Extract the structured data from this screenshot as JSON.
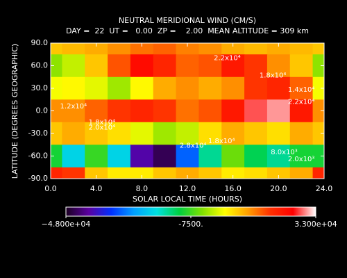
{
  "chart_data": {
    "type": "heatmap",
    "title": "NEUTRAL MERIDIONAL WIND (CM/S)",
    "subtitle": "DAY =  22  UT =   0.00  ZP =    2.00  MEAN ALTITUDE = 309 km",
    "x_label": "SOLAR LOCAL TIME (HOURS)",
    "y_label": "LATITUDE (DEGREES GEOGRAPHIC)",
    "x": [
      0,
      2,
      4,
      6,
      8,
      10,
      12,
      14,
      16,
      18,
      20,
      22,
      24
    ],
    "y": [
      90,
      60,
      30,
      0,
      -30,
      -60,
      -90
    ],
    "values": [
      [
        8000,
        9000,
        10000,
        12000,
        14000,
        15000,
        13000,
        12000,
        10000,
        9000,
        10000,
        9000,
        8000
      ],
      [
        -3000,
        0,
        8000,
        16000,
        24000,
        20000,
        15000,
        16000,
        22000,
        18000,
        12000,
        8000,
        -3000
      ],
      [
        3000,
        4000,
        2000,
        -2000,
        4000,
        10000,
        12000,
        10000,
        12000,
        18000,
        20000,
        15000,
        3000
      ],
      [
        12000,
        12000,
        15000,
        18000,
        20000,
        18000,
        14000,
        16000,
        22000,
        28000,
        30000,
        22000,
        12000
      ],
      [
        8000,
        10000,
        8000,
        6000,
        2000,
        -2000,
        0,
        6000,
        10000,
        8000,
        6000,
        10000,
        8000
      ],
      [
        -10000,
        -20000,
        -8000,
        -20000,
        -40000,
        -45000,
        -30000,
        -15000,
        -5000,
        -12000,
        -15000,
        -10000,
        -10000
      ],
      [
        20000,
        18000,
        8000,
        5000,
        5000,
        8000,
        10000,
        8000,
        5000,
        6000,
        8000,
        10000,
        20000
      ]
    ],
    "xlim": [
      0,
      24
    ],
    "ylim": [
      -90,
      90
    ],
    "xticks": [
      {
        "value": 0,
        "label": "0.0"
      },
      {
        "value": 4,
        "label": "4.0"
      },
      {
        "value": 8,
        "label": "8.0"
      },
      {
        "value": 12,
        "label": "12.0"
      },
      {
        "value": 16,
        "label": "16.0"
      },
      {
        "value": 20,
        "label": "20.0"
      },
      {
        "value": 24,
        "label": "24.0"
      }
    ],
    "yticks": [
      {
        "value": 90,
        "label": "90.0"
      },
      {
        "value": 60,
        "label": "60.0"
      },
      {
        "value": 30,
        "label": "30.0"
      },
      {
        "value": 0,
        "label": "0.0"
      },
      {
        "value": -30,
        "label": "-30.0"
      },
      {
        "value": -60,
        "label": "-60.0"
      },
      {
        "value": -90,
        "label": "-90.0"
      }
    ],
    "zlim": [
      -48000,
      33000
    ],
    "zticks": [
      {
        "value": -48000,
        "label": "−4.800e+04"
      },
      {
        "value": -7500,
        "label": "-7500."
      },
      {
        "value": 33000,
        "label": "3.300e+04"
      }
    ],
    "colormap": [
      "#1a0020",
      "#5a00a0",
      "#0030ff",
      "#00a0ff",
      "#00e0e0",
      "#00d040",
      "#80e000",
      "#ffff00",
      "#ffa000",
      "#ff3000",
      "#ff0000",
      "#ffffff"
    ],
    "annotations": [
      {
        "text": "2.2x10⁴",
        "x": 15.5,
        "y": 70
      },
      {
        "text": "1.8x10⁴",
        "x": 19.5,
        "y": 47
      },
      {
        "text": "1.4x10⁴",
        "x": 22,
        "y": 28
      },
      {
        "text": "2.2x10⁴",
        "x": 22,
        "y": 12
      },
      {
        "text": "1.2x10⁴",
        "x": 2,
        "y": 6
      },
      {
        "text": "1.8x10⁴",
        "x": 4.5,
        "y": -15
      },
      {
        "text": "2.0x10⁴",
        "x": 4.5,
        "y": -22
      },
      {
        "text": "2.8x10⁴",
        "x": 12.5,
        "y": -46
      },
      {
        "text": "1.8x10⁴",
        "x": 15,
        "y": -40
      },
      {
        "text": "8.0x10³",
        "x": 20.5,
        "y": -55
      },
      {
        "text": "2.0x10³",
        "x": 22,
        "y": -64
      }
    ]
  }
}
